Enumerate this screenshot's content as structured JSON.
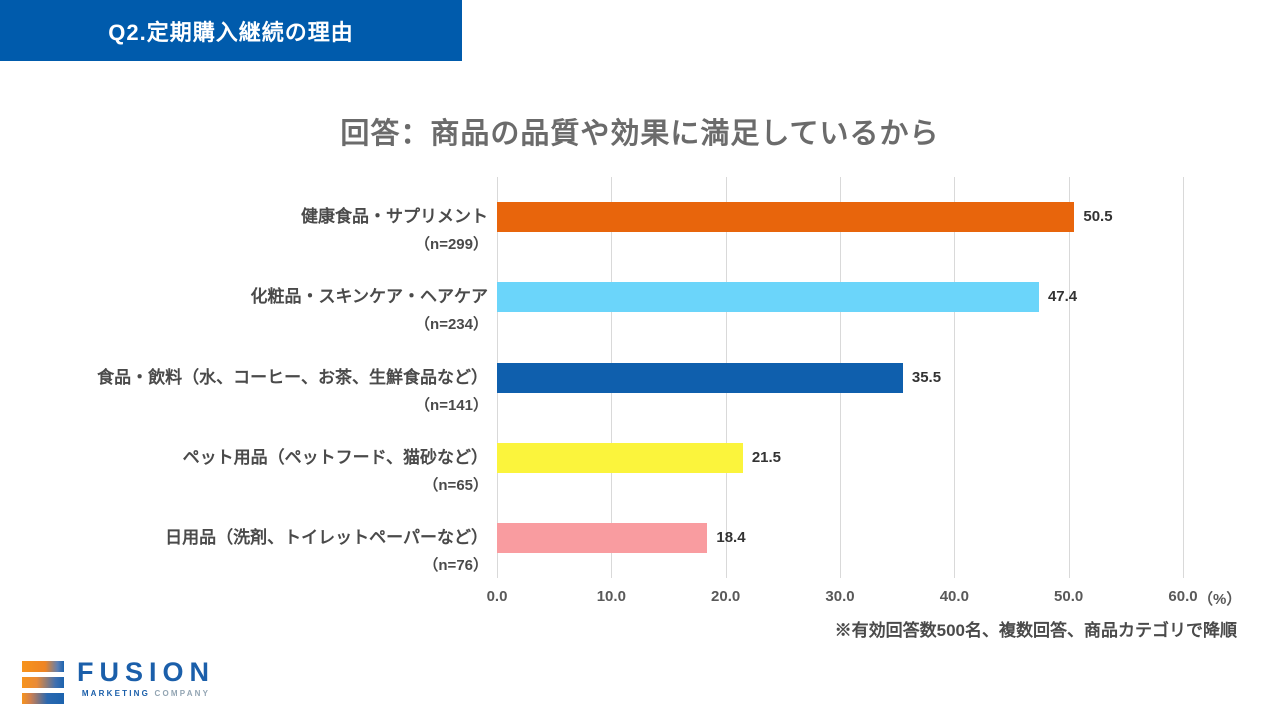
{
  "banner": {
    "label": "Q2.定期購入継続の理由",
    "bg_color": "#005BAC"
  },
  "title": "回答：商品の品質や効果に満足しているから",
  "chart_data": {
    "type": "bar",
    "orientation": "horizontal",
    "title": "回答：商品の品質や効果に満足しているから",
    "categories": [
      "健康食品・サプリメント",
      "化粧品・スキンケア・ヘアケア",
      "食品・飲料（水、コーヒー、お茶、生鮮食品など）",
      "ペット用品（ペットフード、猫砂など）",
      "日用品（洗剤、トイレットペーパーなど）"
    ],
    "sample_sizes": [
      "（n=299）",
      "（n=234）",
      "（n=141）",
      "（n=65）",
      "（n=76）"
    ],
    "values": [
      50.5,
      47.4,
      35.5,
      21.5,
      18.4
    ],
    "value_labels": [
      "50.5",
      "47.4",
      "35.5",
      "21.5",
      "18.4"
    ],
    "bar_colors": [
      "#E8650C",
      "#6BD5FA",
      "#0F5FAD",
      "#FBF43C",
      "#F99CA0"
    ],
    "x_ticks": [
      "0.0",
      "10.0",
      "20.0",
      "30.0",
      "40.0",
      "50.0",
      "60.0"
    ],
    "x_unit": "（%）",
    "xlim": [
      0,
      60
    ],
    "grid": true,
    "gridline_color": "#D9D9D9",
    "legend": "none",
    "note": "※有効回答数500名、複数回答、商品カテゴリで降順"
  },
  "logo": {
    "name": "FUSION",
    "subtitle_strong": "MARKETING",
    "subtitle_light": "COMPANY",
    "brand_blue": "#1B5FAA",
    "brand_orange": "#F7941D"
  }
}
